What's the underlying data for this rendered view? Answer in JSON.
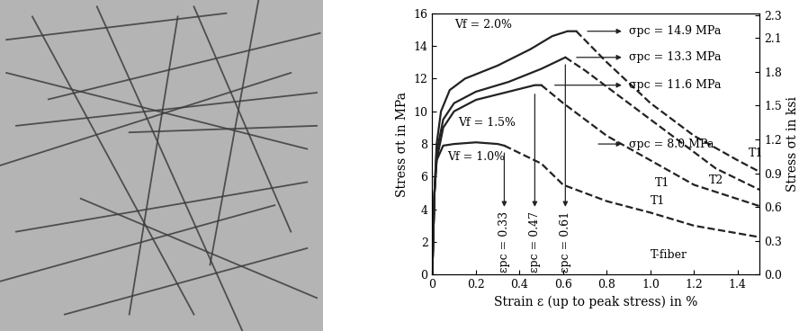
{
  "chart_data": {
    "type": "line",
    "xlabel": "Strain ε (up to peak stress) in %",
    "ylabel": "Stress σt in MPa",
    "y2label": "Stress σt in ksi",
    "xlim": [
      0,
      1.5
    ],
    "xticks": [
      0,
      0.2,
      0.4,
      0.6,
      0.8,
      1.0,
      1.2,
      1.4
    ],
    "ylim": [
      0,
      16
    ],
    "yticks": [
      0,
      2,
      4,
      6,
      8,
      10,
      12,
      14,
      16
    ],
    "y2lim": [
      0,
      2.32
    ],
    "y2ticks": [
      {
        "value": 0,
        "label": "0.0"
      },
      0.3,
      0.6,
      0.9,
      1.2,
      1.5,
      1.8,
      2.1,
      2.3
    ],
    "series": [
      {
        "color": "#222222",
        "line_style": "solid",
        "x": [
          0,
          0.01,
          0.02,
          0.04,
          0.08,
          0.15,
          0.3,
          0.45,
          0.55,
          0.62,
          0.66
        ],
        "values": [
          0,
          5,
          8,
          10,
          11.3,
          12,
          12.8,
          13.8,
          14.6,
          14.9,
          14.9
        ]
      },
      {
        "color": "#222222",
        "line_style": "dashed",
        "x": [
          0.66,
          0.8,
          1.0,
          1.2,
          1.4,
          1.5
        ],
        "values": [
          14.9,
          13,
          10.5,
          8.5,
          7,
          6.3
        ]
      },
      {
        "color": "#222222",
        "line_style": "solid",
        "x": [
          0,
          0.01,
          0.02,
          0.05,
          0.1,
          0.2,
          0.35,
          0.5,
          0.61
        ],
        "values": [
          0,
          5,
          7.5,
          9.5,
          10.5,
          11.2,
          11.8,
          12.6,
          13.3
        ]
      },
      {
        "color": "#222222",
        "line_style": "dashed",
        "x": [
          0.61,
          0.7,
          0.9,
          1.1,
          1.3,
          1.5
        ],
        "values": [
          13.3,
          12.5,
          10.5,
          8.5,
          6.5,
          5.2
        ]
      },
      {
        "color": "#222222",
        "line_style": "solid",
        "x": [
          0,
          0.01,
          0.02,
          0.05,
          0.1,
          0.2,
          0.35,
          0.47,
          0.5
        ],
        "values": [
          0,
          5,
          7,
          9,
          10,
          10.7,
          11.2,
          11.6,
          11.6
        ]
      },
      {
        "color": "#222222",
        "line_style": "dashed",
        "x": [
          0.5,
          0.6,
          0.8,
          1.0,
          1.2,
          1.5
        ],
        "values": [
          11.6,
          10.5,
          8.5,
          7,
          5.5,
          4.2
        ]
      },
      {
        "color": "#222222",
        "line_style": "solid",
        "x": [
          0,
          0.01,
          0.02,
          0.05,
          0.1,
          0.2,
          0.3,
          0.33
        ],
        "values": [
          0,
          5,
          7,
          7.9,
          8.0,
          8.1,
          8.0,
          7.9
        ]
      },
      {
        "color": "#222222",
        "line_style": "dashed",
        "x": [
          0.33,
          0.5,
          0.6,
          0.8,
          1.0,
          1.2,
          1.5
        ],
        "values": [
          7.9,
          6.8,
          5.5,
          4.5,
          3.8,
          3.0,
          2.3
        ]
      }
    ],
    "annotations": [
      {
        "text": "Vf = 2.0%",
        "x": 0.1,
        "y": 15.3
      },
      {
        "text": "Vf = 1.5%",
        "x": 0.12,
        "y": 9.3
      },
      {
        "text": "Vf = 1.0%",
        "x": 0.07,
        "y": 7.2
      },
      {
        "text": "σpc = 14.9 MPa",
        "x": 0.9,
        "y": 14.9,
        "arrow_from": [
          0.7,
          14.9
        ],
        "arrow_to": [
          0.88,
          14.9
        ]
      },
      {
        "text": "σpc = 13.3 MPa",
        "x": 0.9,
        "y": 13.3,
        "arrow_from": [
          0.65,
          13.3
        ],
        "arrow_to": [
          0.88,
          13.3
        ]
      },
      {
        "text": "σpc = 11.6 MPa",
        "x": 0.9,
        "y": 11.6,
        "arrow_from": [
          0.55,
          11.6
        ],
        "arrow_to": [
          0.88,
          11.6
        ]
      },
      {
        "text": "σpc = 8.0 MPa",
        "x": 0.9,
        "y": 8.0,
        "arrow_from": [
          0.75,
          8.0
        ],
        "arrow_to": [
          0.88,
          8.0
        ]
      },
      {
        "text": "T1",
        "x": 1.45,
        "y": 7.4
      },
      {
        "text": "T2",
        "x": 1.27,
        "y": 5.8
      },
      {
        "text": "T1",
        "x": 1.02,
        "y": 5.6
      },
      {
        "text": "T1",
        "x": 1.0,
        "y": 4.5
      },
      {
        "text": "T-fiber",
        "x": 1.0,
        "y": 1.2
      }
    ],
    "vertical_annotations": [
      {
        "text": "εpc = 0.33",
        "x": 0.33,
        "y": 2.0,
        "arrow_from": [
          0.33,
          7.6
        ],
        "arrow_to": [
          0.33,
          4.0
        ]
      },
      {
        "text": "εpc = 0.47",
        "x": 0.47,
        "y": 2.0,
        "arrow_from": [
          0.47,
          11.2
        ],
        "arrow_to": [
          0.47,
          4.0
        ]
      },
      {
        "text": "εpc = 0.61",
        "x": 0.61,
        "y": 2.0,
        "arrow_from": [
          0.61,
          13.0
        ],
        "arrow_to": [
          0.61,
          4.0
        ]
      }
    ]
  }
}
